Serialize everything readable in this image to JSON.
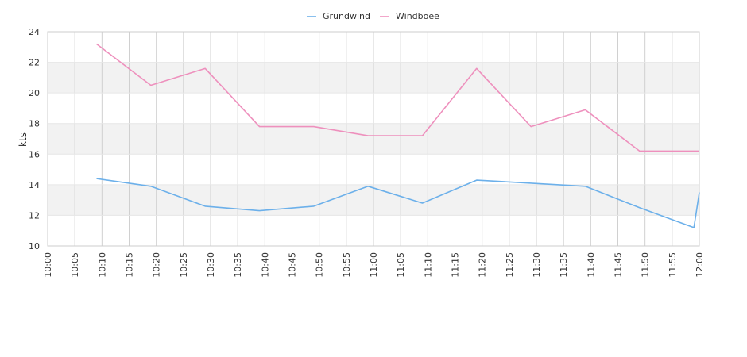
{
  "chart_data": {
    "type": "line",
    "ylabel": "kts",
    "ylim": [
      10,
      24
    ],
    "yticks": [
      "10",
      "12",
      "14",
      "16",
      "18",
      "20",
      "22",
      "24"
    ],
    "xlim": [
      "10:00",
      "12:00"
    ],
    "xticks": [
      "10:00",
      "10:05",
      "10:10",
      "10:15",
      "10:20",
      "10:25",
      "10:30",
      "10:35",
      "10:40",
      "10:45",
      "10:50",
      "10:55",
      "11:00",
      "11:05",
      "11:10",
      "11:15",
      "11:20",
      "11:25",
      "11:30",
      "11:35",
      "11:40",
      "11:45",
      "11:50",
      "11:55",
      "12:00"
    ],
    "banding": "alternating horizontal bands",
    "grid": true,
    "legend_position": "top-center",
    "series": [
      {
        "name": "Grundwind",
        "color": "#6cb0ea",
        "x": [
          "10:09",
          "10:19",
          "10:29",
          "10:39",
          "10:49",
          "10:59",
          "11:09",
          "11:19",
          "11:29",
          "11:39",
          "11:49",
          "11:59",
          "12:00"
        ],
        "values": [
          14.4,
          13.9,
          12.6,
          12.3,
          12.6,
          13.9,
          12.8,
          14.3,
          14.1,
          13.9,
          12.5,
          11.2,
          13.5
        ]
      },
      {
        "name": "Windboee",
        "color": "#ee90bd",
        "x": [
          "10:09",
          "10:19",
          "10:29",
          "10:39",
          "10:49",
          "10:59",
          "11:09",
          "11:19",
          "11:29",
          "11:39",
          "11:49",
          "11:59",
          "12:00"
        ],
        "values": [
          23.2,
          20.5,
          21.6,
          17.8,
          17.8,
          17.2,
          17.2,
          21.6,
          17.8,
          18.9,
          16.2,
          16.2,
          16.2
        ]
      }
    ]
  }
}
